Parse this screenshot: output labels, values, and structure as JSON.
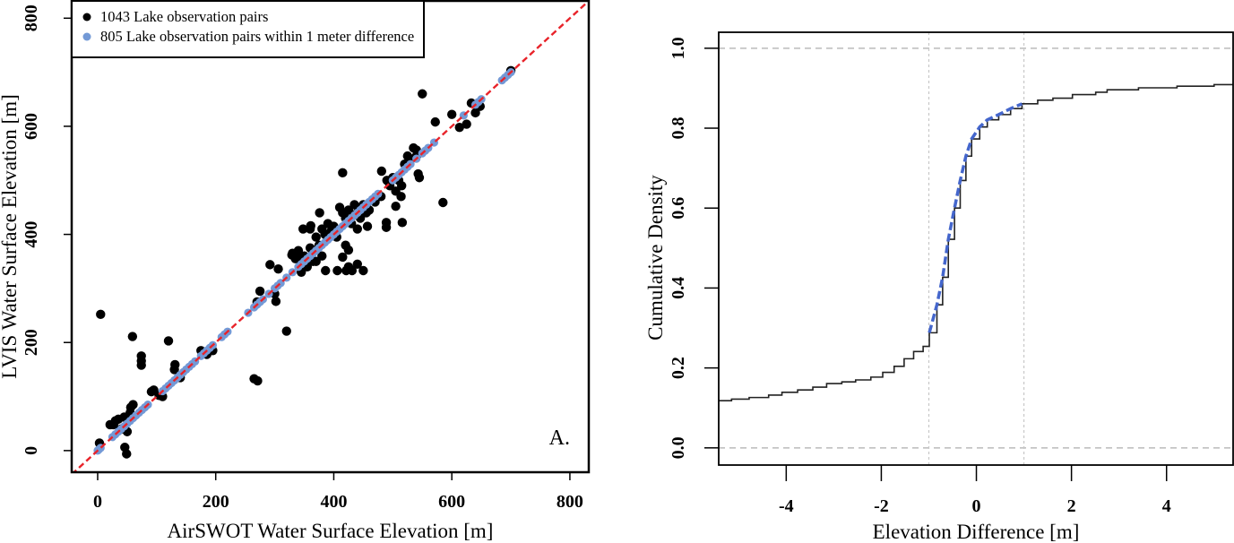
{
  "chart_data": [
    {
      "type": "scatter",
      "panel_label": "A.",
      "xlabel": "AirSWOT Water Surface Elevation [m]",
      "ylabel": "LVIS Water Surface Elevation [m]",
      "xlim": [
        -44,
        832
      ],
      "ylim": [
        -40,
        832
      ],
      "xticks": [
        0,
        200,
        400,
        600,
        800
      ],
      "yticks": [
        0,
        200,
        400,
        600,
        800
      ],
      "grid": false,
      "legend_position": "top-left",
      "reference_line": {
        "type": "1:1",
        "color": "#e8232a",
        "style": "dashed"
      },
      "series": [
        {
          "name": "1043 Lake observation pairs",
          "color": "#000000",
          "points": [
            [
              5,
              252
            ],
            [
              59,
              211
            ],
            [
              74,
              175
            ],
            [
              74,
              166
            ],
            [
              74,
              158
            ],
            [
              120,
              203
            ],
            [
              131,
              159
            ],
            [
              265,
              133
            ],
            [
              271,
              129
            ],
            [
              320,
              221
            ],
            [
              292,
              344
            ],
            [
              306,
              336
            ],
            [
              302,
              276
            ],
            [
              49,
              -6
            ],
            [
              46,
              6
            ],
            [
              56,
              80
            ],
            [
              27,
              48
            ],
            [
              21,
              48
            ],
            [
              3,
              14
            ],
            [
              91,
              109
            ],
            [
              104,
              102
            ],
            [
              190,
              186
            ],
            [
              386,
              333
            ],
            [
              406,
              333
            ],
            [
              421,
              333
            ],
            [
              431,
              333
            ],
            [
              450,
              333
            ],
            [
              425,
              340
            ],
            [
              440,
              345
            ],
            [
              425,
              371
            ],
            [
              415,
              358
            ],
            [
              376,
              440
            ],
            [
              415,
              514
            ],
            [
              481,
              517
            ],
            [
              489,
              422
            ],
            [
              489,
              413
            ],
            [
              505,
              452
            ],
            [
              516,
              422
            ],
            [
              514,
              470
            ],
            [
              585,
              459
            ],
            [
              550,
              660
            ],
            [
              572,
              608
            ],
            [
              600,
              622
            ],
            [
              613,
              598
            ],
            [
              625,
              604
            ],
            [
              633,
              643
            ],
            [
              648,
              637
            ],
            [
              457,
              415
            ],
            [
              348,
              410
            ],
            [
              361,
              416
            ],
            [
              341,
              358
            ],
            [
              329,
              362
            ],
            [
              540,
              556
            ],
            [
              543,
              512
            ],
            [
              30,
              55
            ],
            [
              35,
              58
            ],
            [
              45,
              62
            ],
            [
              50,
              35
            ],
            [
              55,
              70
            ],
            [
              60,
              85
            ],
            [
              40,
              40
            ],
            [
              95,
              112
            ],
            [
              110,
              100
            ],
            [
              130,
              150
            ],
            [
              140,
              135
            ],
            [
              175,
              185
            ],
            [
              185,
              178
            ],
            [
              195,
              185
            ],
            [
              270,
              275
            ],
            [
              275,
              295
            ],
            [
              300,
              290
            ],
            [
              330,
              365
            ],
            [
              335,
              355
            ],
            [
              340,
              370
            ],
            [
              345,
              345
            ],
            [
              350,
              360
            ],
            [
              355,
              340
            ],
            [
              360,
              375
            ],
            [
              365,
              350
            ],
            [
              370,
              395
            ],
            [
              375,
              380
            ],
            [
              380,
              410
            ],
            [
              385,
              400
            ],
            [
              390,
              420
            ],
            [
              395,
              405
            ],
            [
              400,
              415
            ],
            [
              405,
              395
            ],
            [
              410,
              450
            ],
            [
              415,
              440
            ],
            [
              420,
              430
            ],
            [
              425,
              445
            ],
            [
              430,
              420
            ],
            [
              435,
              455
            ],
            [
              440,
              440
            ],
            [
              445,
              430
            ],
            [
              450,
              455
            ],
            [
              455,
              440
            ],
            [
              460,
              445
            ],
            [
              470,
              460
            ],
            [
              480,
              470
            ],
            [
              490,
              500
            ],
            [
              495,
              490
            ],
            [
              500,
              505
            ],
            [
              505,
              480
            ],
            [
              510,
              500
            ],
            [
              515,
              490
            ],
            [
              520,
              530
            ],
            [
              525,
              545
            ],
            [
              530,
              540
            ],
            [
              535,
              560
            ],
            [
              540,
              545
            ],
            [
              545,
              505
            ],
            [
              640,
              625
            ],
            [
              645,
              640
            ],
            [
              700,
              703
            ],
            [
              340,
              365
            ],
            [
              345,
              330
            ],
            [
              360,
              410
            ],
            [
              370,
              350
            ],
            [
              380,
              360
            ],
            [
              400,
              400
            ],
            [
              420,
              380
            ],
            [
              440,
              410
            ]
          ]
        },
        {
          "name": "805 Lake observation pairs within 1 meter difference",
          "color": "#7399d6",
          "points": [
            [
              0,
              0
            ],
            [
              2,
              2
            ],
            [
              5,
              5
            ],
            [
              25,
              25
            ],
            [
              30,
              30
            ],
            [
              35,
              35
            ],
            [
              40,
              40
            ],
            [
              45,
              45
            ],
            [
              50,
              50
            ],
            [
              55,
              55
            ],
            [
              60,
              60
            ],
            [
              65,
              65
            ],
            [
              70,
              70
            ],
            [
              75,
              75
            ],
            [
              80,
              80
            ],
            [
              85,
              85
            ],
            [
              110,
              110
            ],
            [
              115,
              115
            ],
            [
              120,
              120
            ],
            [
              125,
              125
            ],
            [
              130,
              130
            ],
            [
              135,
              135
            ],
            [
              140,
              140
            ],
            [
              145,
              145
            ],
            [
              150,
              150
            ],
            [
              155,
              155
            ],
            [
              160,
              160
            ],
            [
              165,
              165
            ],
            [
              175,
              175
            ],
            [
              180,
              180
            ],
            [
              185,
              185
            ],
            [
              190,
              190
            ],
            [
              195,
              195
            ],
            [
              210,
              210
            ],
            [
              215,
              215
            ],
            [
              220,
              220
            ],
            [
              255,
              255
            ],
            [
              265,
              265
            ],
            [
              270,
              270
            ],
            [
              275,
              275
            ],
            [
              280,
              280
            ],
            [
              290,
              290
            ],
            [
              300,
              300
            ],
            [
              305,
              305
            ],
            [
              310,
              310
            ],
            [
              320,
              320
            ],
            [
              330,
              330
            ],
            [
              340,
              340
            ],
            [
              345,
              345
            ],
            [
              350,
              350
            ],
            [
              355,
              355
            ],
            [
              360,
              360
            ],
            [
              365,
              365
            ],
            [
              370,
              370
            ],
            [
              375,
              375
            ],
            [
              380,
              380
            ],
            [
              385,
              385
            ],
            [
              390,
              390
            ],
            [
              395,
              395
            ],
            [
              400,
              400
            ],
            [
              405,
              405
            ],
            [
              410,
              410
            ],
            [
              415,
              415
            ],
            [
              420,
              420
            ],
            [
              425,
              425
            ],
            [
              430,
              430
            ],
            [
              435,
              435
            ],
            [
              440,
              440
            ],
            [
              445,
              445
            ],
            [
              450,
              450
            ],
            [
              455,
              455
            ],
            [
              460,
              460
            ],
            [
              465,
              465
            ],
            [
              470,
              470
            ],
            [
              475,
              475
            ],
            [
              500,
              500
            ],
            [
              505,
              505
            ],
            [
              510,
              510
            ],
            [
              515,
              515
            ],
            [
              520,
              520
            ],
            [
              525,
              525
            ],
            [
              530,
              530
            ],
            [
              540,
              540
            ],
            [
              550,
              550
            ],
            [
              555,
              555
            ],
            [
              560,
              560
            ],
            [
              570,
              570
            ],
            [
              620,
              620
            ],
            [
              640,
              640
            ],
            [
              645,
              645
            ],
            [
              650,
              650
            ],
            [
              685,
              685
            ],
            [
              690,
              690
            ],
            [
              695,
              695
            ],
            [
              700,
              700
            ]
          ]
        }
      ]
    },
    {
      "type": "line",
      "subtype": "ecdf-step",
      "xlabel": "Elevation Difference [m]",
      "ylabel": "Cumulative Density",
      "xlim": [
        -5.42,
        5.4
      ],
      "ylim": [
        -0.043,
        1.04
      ],
      "xticks": [
        -4,
        -2,
        0,
        2,
        4
      ],
      "yticks": [
        "0.0",
        "0.2",
        "0.4",
        "0.6",
        "0.8",
        "1.0"
      ],
      "grid": false,
      "hlines": [
        0,
        1
      ],
      "vlines": [
        -1,
        1
      ],
      "highlight_range": [
        -1,
        1
      ],
      "line_color": "#222222",
      "highlight_color": "#4466cc",
      "points": [
        [
          -5.42,
          0.118
        ],
        [
          -5.15,
          0.122
        ],
        [
          -4.78,
          0.126
        ],
        [
          -4.37,
          0.132
        ],
        [
          -4.09,
          0.139
        ],
        [
          -3.76,
          0.145
        ],
        [
          -3.44,
          0.152
        ],
        [
          -3.15,
          0.161
        ],
        [
          -2.83,
          0.165
        ],
        [
          -2.54,
          0.17
        ],
        [
          -2.22,
          0.177
        ],
        [
          -1.97,
          0.189
        ],
        [
          -1.73,
          0.204
        ],
        [
          -1.52,
          0.223
        ],
        [
          -1.32,
          0.241
        ],
        [
          -1.12,
          0.254
        ],
        [
          -0.99,
          0.288
        ],
        [
          -0.83,
          0.358
        ],
        [
          -0.71,
          0.427
        ],
        [
          -0.59,
          0.522
        ],
        [
          -0.46,
          0.6
        ],
        [
          -0.34,
          0.669
        ],
        [
          -0.22,
          0.73
        ],
        [
          -0.1,
          0.773
        ],
        [
          0.07,
          0.803
        ],
        [
          0.23,
          0.821
        ],
        [
          0.47,
          0.834
        ],
        [
          0.72,
          0.849
        ],
        [
          0.96,
          0.861
        ],
        [
          1.29,
          0.87
        ],
        [
          1.61,
          0.875
        ],
        [
          2.02,
          0.884
        ],
        [
          2.51,
          0.89
        ],
        [
          2.75,
          0.896
        ],
        [
          3.41,
          0.901
        ],
        [
          4.22,
          0.905
        ],
        [
          5.0,
          0.909
        ],
        [
          5.42,
          0.909
        ]
      ]
    }
  ]
}
